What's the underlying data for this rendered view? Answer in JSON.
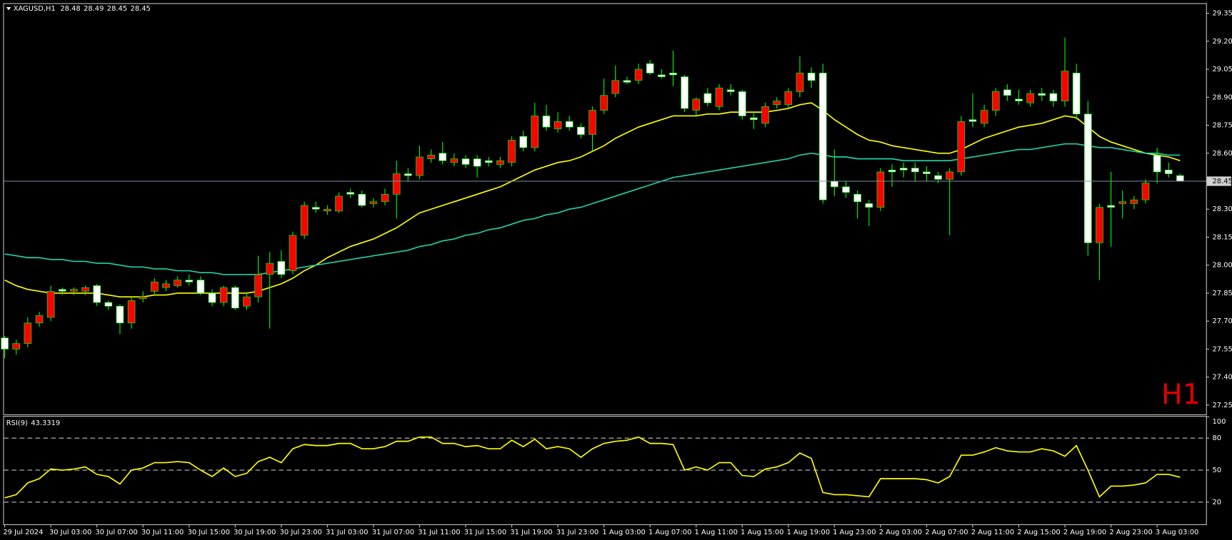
{
  "chart_data": [
    {
      "type": "candlestick",
      "title": "XAGUSD,H1",
      "watermark": "H1",
      "categories": [
        "29 Jul 2024",
        null,
        null,
        null,
        "30 Jul 03:00",
        null,
        null,
        null,
        "30 Jul 07:00",
        null,
        null,
        null,
        "30 Jul 11:00",
        null,
        null,
        null,
        "30 Jul 15:00",
        null,
        null,
        null,
        "30 Jul 19:00",
        null,
        null,
        null,
        "30 Jul 23:00",
        null,
        null,
        null,
        "31 Jul 03:00",
        null,
        null,
        null,
        "31 Jul 07:00",
        null,
        null,
        null,
        "31 Jul 11:00",
        null,
        null,
        null,
        "31 Jul 15:00",
        null,
        null,
        null,
        "31 Jul 19:00",
        null,
        null,
        null,
        "31 Jul 23:00",
        null,
        null,
        null,
        "1 Aug 03:00",
        null,
        null,
        null,
        "1 Aug 07:00",
        null,
        null,
        null,
        "1 Aug 11:00",
        null,
        null,
        null,
        "1 Aug 15:00",
        null,
        null,
        null,
        "1 Aug 19:00",
        null,
        null,
        null,
        "1 Aug 23:00",
        null,
        null,
        null,
        "2 Aug 03:00",
        null,
        null,
        null,
        "2 Aug 07:00",
        null,
        null,
        null,
        "2 Aug 11:00",
        null,
        null,
        null,
        "2 Aug 15:00",
        null,
        null,
        null,
        "2 Aug 19:00",
        null,
        null,
        null,
        "2 Aug 23:00",
        null,
        null,
        null,
        "3 Aug 03:00",
        null,
        null
      ],
      "open": [
        27.61,
        27.55,
        27.58,
        27.69,
        27.72,
        27.87,
        27.86,
        27.86,
        27.89,
        27.8,
        27.78,
        27.69,
        27.82,
        27.86,
        27.88,
        27.89,
        27.92,
        27.92,
        27.85,
        27.8,
        27.88,
        27.78,
        27.83,
        27.95,
        28.02,
        27.97,
        28.16,
        28.31,
        28.29,
        28.29,
        28.39,
        28.38,
        28.33,
        28.34,
        28.38,
        28.49,
        28.48,
        28.57,
        28.6,
        28.55,
        28.57,
        28.57,
        28.56,
        28.54,
        28.55,
        28.69,
        28.63,
        28.8,
        28.73,
        28.77,
        28.74,
        28.7,
        28.83,
        28.92,
        28.99,
        28.99,
        29.08,
        29.02,
        29.03,
        29.01,
        28.83,
        28.92,
        28.85,
        28.94,
        28.93,
        28.79,
        28.76,
        28.86,
        28.86,
        28.93,
        29.03,
        29.03,
        28.45,
        28.42,
        28.38,
        28.33,
        28.31,
        28.51,
        28.52,
        28.52,
        28.5,
        28.48,
        28.46,
        28.5,
        28.78,
        28.76,
        28.83,
        28.94,
        28.89,
        28.87,
        28.92,
        28.92,
        28.88,
        29.03,
        28.81,
        28.12,
        28.32,
        28.33,
        28.33,
        28.35,
        28.59,
        28.51,
        28.48
      ],
      "high": [
        27.62,
        27.6,
        27.72,
        27.75,
        27.89,
        27.88,
        27.88,
        27.89,
        27.9,
        27.81,
        27.79,
        27.83,
        27.86,
        27.93,
        27.92,
        27.94,
        27.95,
        27.94,
        27.87,
        27.89,
        27.89,
        27.85,
        28.05,
        28.07,
        28.08,
        28.18,
        28.34,
        28.34,
        28.32,
        28.39,
        28.41,
        28.4,
        28.36,
        28.41,
        28.56,
        28.52,
        28.64,
        28.62,
        28.66,
        28.6,
        28.59,
        28.59,
        28.58,
        28.58,
        28.69,
        28.72,
        28.87,
        28.86,
        28.82,
        28.8,
        28.76,
        28.85,
        29.0,
        29.07,
        29.01,
        29.08,
        29.1,
        29.05,
        29.15,
        29.02,
        28.9,
        28.95,
        28.97,
        28.97,
        28.94,
        28.82,
        28.87,
        28.9,
        28.95,
        29.12,
        29.06,
        29.08,
        28.62,
        28.45,
        28.4,
        28.35,
        28.52,
        28.54,
        28.55,
        28.55,
        28.53,
        28.5,
        28.52,
        28.8,
        28.92,
        28.86,
        28.95,
        28.97,
        28.94,
        28.94,
        28.95,
        28.94,
        29.22,
        29.08,
        28.88,
        28.33,
        28.5,
        28.4,
        28.37,
        28.46,
        28.63,
        28.55,
        28.49
      ],
      "low": [
        27.5,
        27.52,
        27.56,
        27.67,
        27.7,
        27.84,
        27.84,
        27.84,
        27.78,
        27.76,
        27.63,
        27.66,
        27.8,
        27.84,
        27.86,
        27.88,
        27.89,
        27.84,
        27.78,
        27.78,
        27.76,
        27.76,
        27.8,
        27.66,
        27.93,
        27.95,
        28.14,
        28.28,
        28.27,
        28.28,
        28.36,
        28.31,
        28.31,
        28.32,
        28.25,
        28.45,
        28.46,
        28.55,
        28.54,
        28.53,
        28.52,
        28.47,
        28.53,
        28.52,
        28.53,
        28.61,
        28.61,
        28.72,
        28.71,
        28.72,
        28.68,
        28.61,
        28.81,
        28.9,
        28.97,
        28.97,
        29.02,
        29.0,
        28.96,
        28.82,
        28.8,
        28.85,
        28.83,
        28.91,
        28.78,
        28.73,
        28.74,
        28.84,
        28.84,
        28.9,
        28.95,
        28.33,
        28.37,
        28.36,
        28.25,
        28.21,
        28.29,
        28.42,
        28.47,
        28.45,
        28.45,
        28.44,
        28.16,
        28.48,
        28.74,
        28.74,
        28.8,
        28.88,
        28.86,
        28.85,
        28.88,
        28.85,
        28.85,
        28.78,
        28.05,
        27.92,
        28.1,
        28.25,
        28.3,
        28.33,
        28.44,
        28.47,
        28.45
      ],
      "close": [
        27.55,
        27.58,
        27.69,
        27.73,
        27.86,
        27.86,
        27.87,
        27.88,
        27.8,
        27.78,
        27.69,
        27.81,
        27.83,
        27.91,
        27.9,
        27.92,
        27.91,
        27.85,
        27.8,
        27.88,
        27.77,
        27.83,
        27.95,
        28.01,
        27.95,
        28.16,
        28.32,
        28.3,
        28.3,
        28.37,
        28.38,
        28.32,
        28.34,
        28.38,
        28.49,
        28.48,
        28.58,
        28.59,
        28.56,
        28.57,
        28.54,
        28.53,
        28.55,
        28.56,
        28.67,
        28.63,
        28.8,
        28.74,
        28.77,
        28.74,
        28.7,
        28.83,
        28.91,
        28.99,
        28.98,
        29.05,
        29.03,
        29.01,
        29.02,
        28.84,
        28.89,
        28.87,
        28.95,
        28.93,
        28.8,
        28.78,
        28.85,
        28.88,
        28.93,
        29.03,
        28.99,
        28.35,
        28.42,
        28.39,
        28.34,
        28.31,
        28.5,
        28.5,
        28.51,
        28.5,
        28.49,
        28.46,
        28.5,
        28.77,
        28.77,
        28.83,
        28.93,
        28.91,
        28.88,
        28.92,
        28.91,
        28.88,
        29.04,
        28.81,
        28.12,
        28.31,
        28.31,
        28.34,
        28.35,
        28.44,
        28.5,
        28.49,
        28.45
      ],
      "up_color": "#ff0000",
      "down_color": "#ffffff",
      "wick_color": "#00ff00",
      "moving_averages": [
        {
          "color": "#ffff00",
          "values": [
            27.92,
            27.89,
            27.87,
            27.86,
            27.85,
            27.85,
            27.85,
            27.85,
            27.85,
            27.84,
            27.83,
            27.83,
            27.83,
            27.84,
            27.84,
            27.85,
            27.85,
            27.85,
            27.85,
            27.85,
            27.85,
            27.85,
            27.86,
            27.88,
            27.9,
            27.93,
            27.97,
            28.0,
            28.04,
            28.07,
            28.1,
            28.12,
            28.14,
            28.17,
            28.2,
            28.24,
            28.28,
            28.3,
            28.32,
            28.34,
            28.36,
            28.38,
            28.4,
            28.42,
            28.45,
            28.48,
            28.51,
            28.53,
            28.55,
            28.56,
            28.58,
            28.61,
            28.64,
            28.68,
            28.71,
            28.74,
            28.76,
            28.78,
            28.8,
            28.8,
            28.8,
            28.81,
            28.81,
            28.82,
            28.82,
            28.82,
            28.82,
            28.83,
            28.84,
            28.86,
            28.87,
            28.83,
            28.78,
            28.74,
            28.7,
            28.67,
            28.66,
            28.64,
            28.63,
            28.62,
            28.61,
            28.6,
            28.6,
            28.62,
            28.65,
            28.68,
            28.7,
            28.72,
            28.74,
            28.75,
            28.76,
            28.78,
            28.8,
            28.79,
            28.74,
            28.69,
            28.66,
            28.64,
            28.62,
            28.6,
            28.59,
            28.58,
            28.56
          ]
        },
        {
          "color": "#1fd1a8",
          "values": [
            28.06,
            28.05,
            28.04,
            28.04,
            28.03,
            28.03,
            28.02,
            28.02,
            28.01,
            28.01,
            28.0,
            27.99,
            27.99,
            27.98,
            27.98,
            27.97,
            27.97,
            27.96,
            27.96,
            27.95,
            27.95,
            27.95,
            27.95,
            27.96,
            27.97,
            27.98,
            27.99,
            28.0,
            28.01,
            28.02,
            28.03,
            28.04,
            28.05,
            28.06,
            28.07,
            28.08,
            28.1,
            28.11,
            28.13,
            28.14,
            28.16,
            28.17,
            28.19,
            28.2,
            28.22,
            28.24,
            28.25,
            28.27,
            28.28,
            28.3,
            28.31,
            28.33,
            28.35,
            28.37,
            28.39,
            28.41,
            28.43,
            28.45,
            28.47,
            28.48,
            28.49,
            28.5,
            28.51,
            28.52,
            28.53,
            28.54,
            28.55,
            28.56,
            28.57,
            28.59,
            28.6,
            28.59,
            28.58,
            28.58,
            28.57,
            28.57,
            28.57,
            28.57,
            28.56,
            28.56,
            28.56,
            28.56,
            28.56,
            28.57,
            28.58,
            28.59,
            28.6,
            28.61,
            28.62,
            28.62,
            28.63,
            28.64,
            28.65,
            28.65,
            28.64,
            28.63,
            28.63,
            28.62,
            28.61,
            28.6,
            28.6,
            28.59,
            28.59
          ]
        }
      ],
      "ylim": [
        27.2,
        29.4
      ],
      "yticks": [
        {
          "value": 29.35,
          "label": "29.35"
        },
        {
          "value": 29.2,
          "label": "29.20"
        },
        {
          "value": 29.05,
          "label": "29.05"
        },
        {
          "value": 28.9,
          "label": "28.90"
        },
        {
          "value": 28.75,
          "label": "28.75"
        },
        {
          "value": 28.6,
          "label": "28.60"
        },
        {
          "value": 28.45,
          "label": "28.45"
        },
        {
          "value": 28.3,
          "label": "28.30"
        },
        {
          "value": 28.15,
          "label": "28.15"
        },
        {
          "value": 28,
          "label": "28.00"
        },
        {
          "value": 27.85,
          "label": "27.85"
        },
        {
          "value": 27.7,
          "label": "27.70"
        },
        {
          "value": 27.55,
          "label": "27.55"
        },
        {
          "value": 27.4,
          "label": "27.40"
        },
        {
          "value": 27.25,
          "label": "27.25"
        }
      ]
    },
    {
      "type": "line",
      "title": "RSI(9)",
      "color": "#ffff00",
      "values": [
        24,
        27,
        38,
        42,
        51,
        50,
        51,
        53,
        46,
        44,
        37,
        50,
        52,
        57,
        57,
        58,
        57,
        50,
        44,
        52,
        44,
        47,
        58,
        62,
        57,
        70,
        74,
        73,
        73,
        75,
        75,
        70,
        70,
        72,
        77,
        77,
        81,
        81,
        75,
        75,
        72,
        73,
        70,
        70,
        78,
        72,
        79,
        70,
        72,
        70,
        62,
        70,
        75,
        77,
        78,
        81,
        75,
        75,
        74,
        50,
        53,
        50,
        57,
        57,
        45,
        44,
        51,
        53,
        57,
        66,
        61,
        29,
        27,
        27,
        26,
        25,
        42,
        42,
        42,
        42,
        41,
        38,
        44,
        64,
        64,
        67,
        71,
        68,
        67,
        67,
        70,
        68,
        63,
        73,
        50,
        25,
        35,
        35,
        36,
        38,
        46,
        46,
        43.3319
      ],
      "ylim": [
        0,
        100
      ],
      "yticks": [
        100,
        80,
        50,
        20
      ]
    }
  ]
}
